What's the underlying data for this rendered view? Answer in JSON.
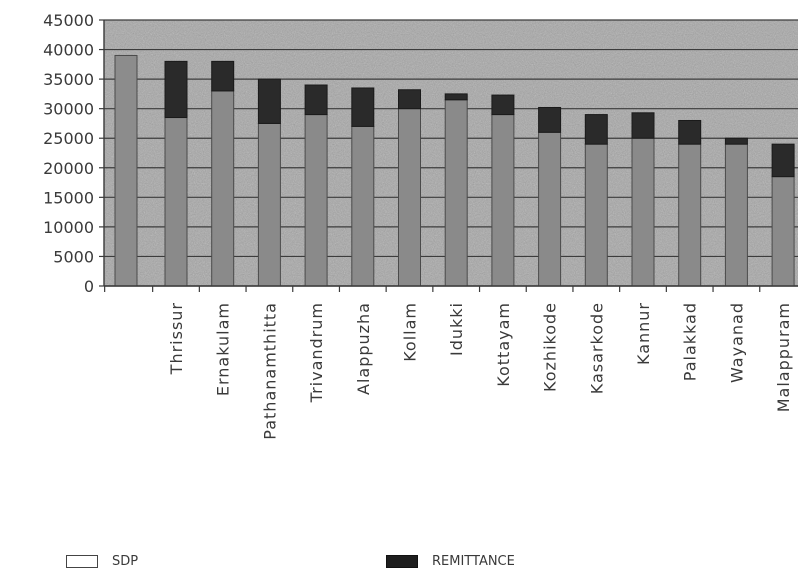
{
  "chart_data": {
    "type": "bar",
    "stacked": true,
    "title": "",
    "xlabel": "",
    "ylabel": "",
    "ylim": [
      0,
      45000
    ],
    "yticks": [
      0,
      5000,
      10000,
      15000,
      20000,
      25000,
      30000,
      35000,
      40000,
      45000
    ],
    "grid": true,
    "legend_position": "bottom",
    "categories": [
      "Thrissur",
      "Ernakulam",
      "Pathanamthitta",
      "Trivandrum",
      "Alappuzha",
      "Kollam",
      "Idukki",
      "Kottayam",
      "Kozhikode",
      "Kasarkode",
      "Kannur",
      "Palakkad",
      "Wayanad",
      "Malappuram"
    ],
    "series": [
      {
        "name": "SDP",
        "color": "#8a8a8a",
        "values": [
          28500,
          33000,
          27500,
          29000,
          27000,
          30000,
          31500,
          29000,
          26000,
          24000,
          25000,
          24000,
          24000,
          18500
        ]
      },
      {
        "name": "REMITTANCE",
        "color": "#2a2a2a",
        "values": [
          9500,
          5000,
          7500,
          5000,
          6500,
          3200,
          1000,
          3300,
          4200,
          5000,
          4300,
          4000,
          1000,
          5500
        ]
      }
    ],
    "extra_bar": {
      "value": 39000,
      "position": "before-first-category"
    }
  },
  "legend": {
    "sdp_label": "SDP",
    "remittance_label": "REMITTANCE"
  }
}
